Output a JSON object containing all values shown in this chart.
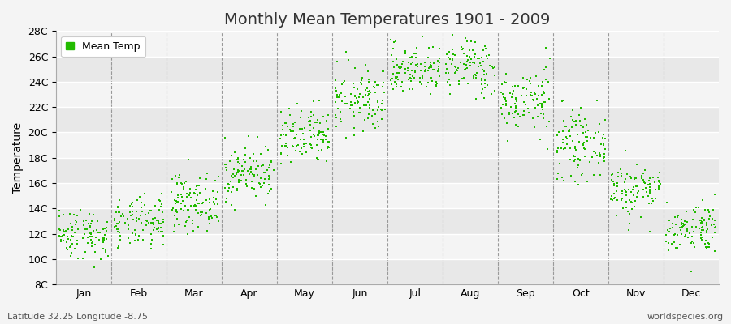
{
  "title": "Monthly Mean Temperatures 1901 - 2009",
  "ylabel": "Temperature",
  "subtitle_left": "Latitude 32.25 Longitude -8.75",
  "subtitle_right": "worldspecies.org",
  "legend_label": "Mean Temp",
  "months": [
    "Jan",
    "Feb",
    "Mar",
    "Apr",
    "May",
    "Jun",
    "Jul",
    "Aug",
    "Sep",
    "Oct",
    "Nov",
    "Dec"
  ],
  "monthly_means": [
    12.0,
    12.8,
    14.5,
    16.8,
    19.5,
    22.5,
    25.0,
    25.2,
    22.5,
    19.0,
    15.5,
    12.5
  ],
  "monthly_stds": [
    1.0,
    1.0,
    1.1,
    1.1,
    1.2,
    1.3,
    1.0,
    1.1,
    1.3,
    1.3,
    1.1,
    1.0
  ],
  "ylim": [
    8,
    28
  ],
  "ytick_values": [
    8,
    10,
    12,
    14,
    16,
    18,
    20,
    22,
    24,
    26,
    28
  ],
  "ytick_labels": [
    "8C",
    "10C",
    "12C",
    "14C",
    "16C",
    "18C",
    "20C",
    "22C",
    "24C",
    "26C",
    "28C"
  ],
  "n_years": 109,
  "marker_color": "#22bb00",
  "marker_size": 4,
  "bg_color": "#f4f4f4",
  "band_light": "#f4f4f4",
  "band_dark": "#e8e8e8",
  "title_fontsize": 14,
  "axis_label_fontsize": 10,
  "tick_fontsize": 9,
  "legend_fontsize": 9,
  "subtitle_fontsize": 8
}
